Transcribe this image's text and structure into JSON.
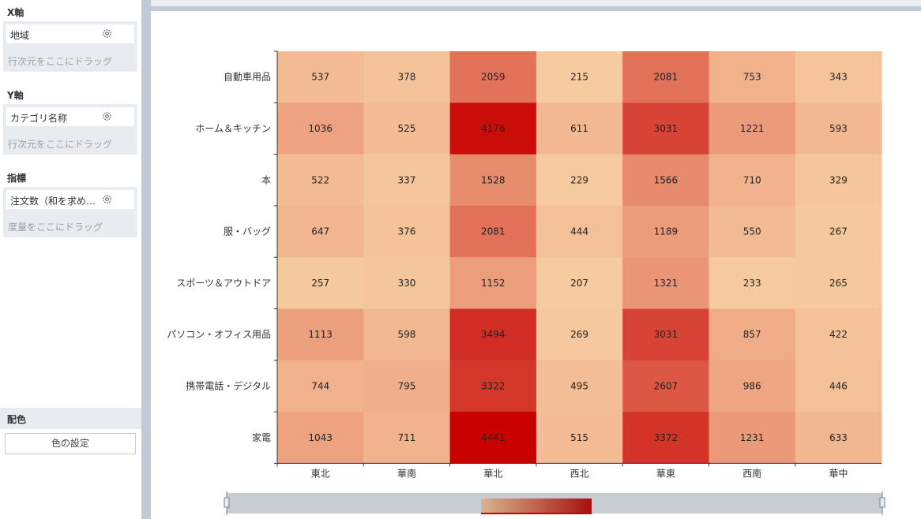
{
  "panel": {
    "x_axis": {
      "title": "X軸",
      "field": "地域",
      "hint": "行次元をここにドラッグ"
    },
    "y_axis": {
      "title": "Y軸",
      "field": "カテゴリ名称",
      "hint": "行次元をここにドラッグ"
    },
    "metric": {
      "title": "指標",
      "field": "注文数（和を求め…",
      "hint": "度量をここにドラッグ"
    },
    "color": {
      "title": "配色",
      "button_label": "色の設定"
    }
  },
  "colors": {
    "low": "#f6cba0",
    "high": "#c80000",
    "panel_bg": "#e8ebf0",
    "divider": "#c2cad3"
  },
  "chart_data": {
    "type": "heatmap",
    "x_categories": [
      "東北",
      "華南",
      "華北",
      "西北",
      "華東",
      "西南",
      "華中"
    ],
    "y_categories": [
      "自動車用品",
      "ホーム＆キッチン",
      "本",
      "服・バッグ",
      "スポーツ＆アウトドア",
      "パソコン・オフィス用品",
      "携帯電話・デジタル",
      "家電"
    ],
    "values": [
      [
        537,
        378,
        2059,
        215,
        2081,
        753,
        343
      ],
      [
        1036,
        525,
        4176,
        611,
        3031,
        1221,
        593
      ],
      [
        522,
        337,
        1528,
        229,
        1566,
        710,
        329
      ],
      [
        647,
        376,
        2081,
        444,
        1189,
        550,
        267
      ],
      [
        257,
        330,
        1152,
        207,
        1321,
        233,
        265
      ],
      [
        1113,
        598,
        3494,
        269,
        3031,
        857,
        422
      ],
      [
        744,
        795,
        3322,
        495,
        2607,
        986,
        446
      ],
      [
        1043,
        711,
        4441,
        515,
        3372,
        1231,
        633
      ]
    ],
    "value_range": [
      207,
      4441
    ],
    "legend": "bottom (gradient slider)"
  }
}
